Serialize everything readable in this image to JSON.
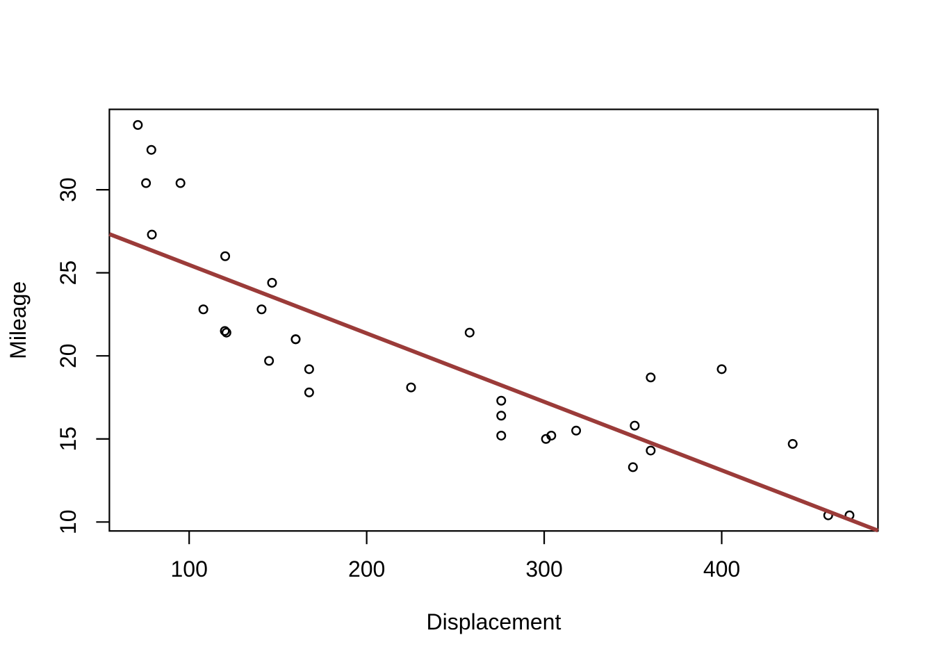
{
  "chart_data": {
    "type": "scatter",
    "title": "",
    "xlabel": "Displacement",
    "ylabel": "Mileage",
    "x_ticks": [
      100,
      200,
      300,
      400
    ],
    "y_ticks": [
      10,
      15,
      20,
      25,
      30
    ],
    "xlim": [
      55.06,
      488.04
    ],
    "ylim": [
      9.46,
      34.84
    ],
    "grid": false,
    "legend": null,
    "frame": true,
    "point_style": {
      "shape": "open-circle",
      "color": "#000000"
    },
    "points": [
      [
        160.0,
        21.0
      ],
      [
        160.0,
        21.0
      ],
      [
        108.0,
        22.8
      ],
      [
        258.0,
        21.4
      ],
      [
        360.0,
        18.7
      ],
      [
        225.0,
        18.1
      ],
      [
        360.0,
        14.3
      ],
      [
        146.7,
        24.4
      ],
      [
        140.8,
        22.8
      ],
      [
        167.6,
        19.2
      ],
      [
        167.6,
        17.8
      ],
      [
        275.8,
        16.4
      ],
      [
        275.8,
        17.3
      ],
      [
        275.8,
        15.2
      ],
      [
        472.0,
        10.4
      ],
      [
        460.0,
        10.4
      ],
      [
        440.0,
        14.7
      ],
      [
        78.7,
        32.4
      ],
      [
        75.7,
        30.4
      ],
      [
        71.1,
        33.9
      ],
      [
        120.1,
        21.5
      ],
      [
        318.0,
        15.5
      ],
      [
        304.0,
        15.2
      ],
      [
        350.0,
        13.3
      ],
      [
        400.0,
        19.2
      ],
      [
        79.0,
        27.3
      ],
      [
        120.3,
        26.0
      ],
      [
        95.1,
        30.4
      ],
      [
        351.0,
        15.8
      ],
      [
        301.0,
        15.0
      ],
      [
        145.0,
        19.7
      ],
      [
        121.0,
        21.4
      ]
    ],
    "trend_line": {
      "type": "linear-regression",
      "intercept": 29.599855,
      "slope": -0.0412151,
      "x_start": 55.06,
      "x_end": 488.04,
      "color": "#9b3b39"
    },
    "axis_color": "#000000",
    "background_color": "#ffffff"
  }
}
